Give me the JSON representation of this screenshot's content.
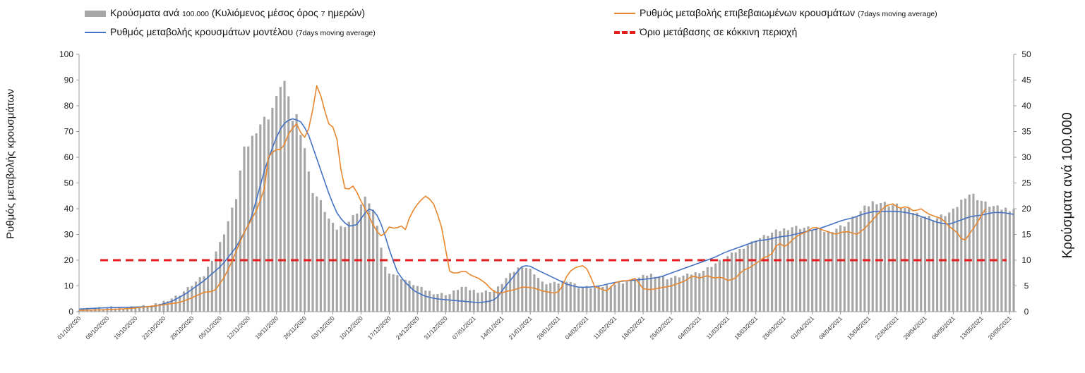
{
  "legend": {
    "bars_main": "Κρούσματα ανά",
    "bars_small": "100.000",
    "bars_tail": "(Κυλιόμενος μέσος όρος",
    "bars_small2": "7",
    "bars_tail2": "ημερών)",
    "model_main": "Ρυθμός μεταβολής κρουσμάτων μοντέλου",
    "model_small": "(7days moving average)",
    "confirmed_main": "Ρυθμός μεταβολής επιβεβαιωμένων κρουσμάτων",
    "confirmed_small": "(7days moving average)",
    "threshold": "Όριο μετάβασης σε κόκκινη περιοχή"
  },
  "colors": {
    "bars": "#a6a6a6",
    "confirmed": "#e8862e",
    "model": "#4472c4",
    "threshold": "#e41c1c"
  },
  "chart_data": {
    "type": "bar+line",
    "ylabel": "Ρυθμός μεταβολής κρουσμάτων",
    "y2label": "Κρούσματα ανά 100.000",
    "ylim": [
      0,
      100
    ],
    "y2lim": [
      0,
      50
    ],
    "yticks": [
      0,
      10,
      20,
      30,
      40,
      50,
      60,
      70,
      80,
      90,
      100
    ],
    "y2ticks": [
      0,
      5,
      10,
      15,
      20,
      25,
      30,
      35,
      40,
      45,
      50
    ],
    "start_date": "01/10/2020",
    "x_tick_labels": [
      "01/10/2020",
      "08/10/2020",
      "15/10/2020",
      "22/10/2020",
      "29/10/2020",
      "05/11/2020",
      "12/11/2020",
      "19/11/2020",
      "26/11/2020",
      "03/12/2020",
      "10/12/2020",
      "17/12/2020",
      "24/12/2020",
      "31/12/2020",
      "07/01/2021",
      "14/01/2021",
      "21/01/2021",
      "28/01/2021",
      "04/02/2021",
      "11/02/2021",
      "18/02/2021",
      "25/02/2021",
      "04/03/2021",
      "11/03/2021",
      "18/03/2021",
      "25/03/2021",
      "01/04/2021",
      "08/04/2021",
      "15/04/2021",
      "22/04/2021",
      "29/04/2021",
      "06/05/2021",
      "13/05/2021",
      "20/05/2021"
    ],
    "threshold": 20,
    "bars_per_100k_anchors": [
      [
        0,
        0.5
      ],
      [
        7,
        0.7
      ],
      [
        14,
        0.8
      ],
      [
        21,
        1.2
      ],
      [
        28,
        3.2
      ],
      [
        35,
        7
      ],
      [
        40,
        14
      ],
      [
        44,
        22
      ],
      [
        46,
        31
      ],
      [
        48,
        33
      ],
      [
        50,
        36
      ],
      [
        53,
        38
      ],
      [
        56,
        42
      ],
      [
        57,
        47
      ],
      [
        58,
        43
      ],
      [
        59,
        40
      ],
      [
        60,
        37
      ],
      [
        61,
        38
      ],
      [
        63,
        33
      ],
      [
        65,
        24
      ],
      [
        68,
        21
      ],
      [
        70,
        18
      ],
      [
        72,
        16
      ],
      [
        75,
        17
      ],
      [
        78,
        19.5
      ],
      [
        80,
        22
      ],
      [
        82,
        21
      ],
      [
        84,
        15
      ],
      [
        86,
        8
      ],
      [
        89,
        7
      ],
      [
        92,
        6
      ],
      [
        96,
        4.5
      ],
      [
        100,
        3.5
      ],
      [
        104,
        3.4
      ],
      [
        107,
        4.8
      ],
      [
        110,
        4.2
      ],
      [
        113,
        3.8
      ],
      [
        117,
        4.3
      ],
      [
        120,
        6.7
      ],
      [
        124,
        9
      ],
      [
        127,
        8
      ],
      [
        130,
        5.5
      ],
      [
        134,
        5.5
      ],
      [
        137,
        6.2
      ],
      [
        140,
        4.8
      ],
      [
        145,
        4.7
      ],
      [
        150,
        5.3
      ],
      [
        155,
        6.1
      ],
      [
        160,
        7.3
      ],
      [
        165,
        6.5
      ],
      [
        170,
        7
      ],
      [
        175,
        8
      ],
      [
        180,
        10
      ],
      [
        185,
        12
      ],
      [
        190,
        14
      ],
      [
        195,
        15.5
      ],
      [
        200,
        16.5
      ],
      [
        205,
        16.2
      ],
      [
        210,
        15.5
      ],
      [
        215,
        17
      ],
      [
        220,
        20
      ],
      [
        223,
        21.5
      ],
      [
        226,
        21
      ],
      [
        230,
        20.5
      ],
      [
        235,
        19
      ],
      [
        240,
        18
      ],
      [
        245,
        19.5
      ],
      [
        249,
        23
      ],
      [
        251,
        22.5
      ],
      [
        254,
        21
      ],
      [
        258,
        20
      ]
    ],
    "confirmed_rate_anchors": [
      [
        0,
        0.5
      ],
      [
        7,
        0.7
      ],
      [
        14,
        1.2
      ],
      [
        21,
        2.2
      ],
      [
        28,
        3.5
      ],
      [
        31,
        5
      ],
      [
        35,
        7.5
      ],
      [
        38,
        8
      ],
      [
        41,
        14
      ],
      [
        43,
        20
      ],
      [
        46,
        30
      ],
      [
        48,
        35
      ],
      [
        50,
        40
      ],
      [
        52,
        48
      ],
      [
        53,
        60
      ],
      [
        55,
        63
      ],
      [
        57,
        63
      ],
      [
        59,
        70
      ],
      [
        61,
        73
      ],
      [
        63,
        67
      ],
      [
        65,
        73
      ],
      [
        66,
        84
      ],
      [
        67,
        90
      ],
      [
        68,
        82
      ],
      [
        70,
        73
      ],
      [
        71,
        72
      ],
      [
        72,
        70
      ],
      [
        74,
        49
      ],
      [
        75,
        47
      ],
      [
        77,
        49
      ],
      [
        79,
        43
      ],
      [
        81,
        38
      ],
      [
        83,
        32
      ],
      [
        85,
        29
      ],
      [
        87,
        33
      ],
      [
        89,
        32
      ],
      [
        90,
        35
      ],
      [
        91,
        30
      ],
      [
        93,
        38
      ],
      [
        95,
        42
      ],
      [
        97,
        45
      ],
      [
        99,
        43
      ],
      [
        100,
        40
      ],
      [
        102,
        31
      ],
      [
        103,
        22
      ],
      [
        104,
        15
      ],
      [
        106,
        15
      ],
      [
        108,
        16
      ],
      [
        110,
        14
      ],
      [
        112,
        13
      ],
      [
        114,
        11
      ],
      [
        116,
        8
      ],
      [
        118,
        7
      ],
      [
        120,
        8
      ],
      [
        122,
        8.5
      ],
      [
        124,
        9.5
      ],
      [
        126,
        9.5
      ],
      [
        128,
        9
      ],
      [
        130,
        8
      ],
      [
        132,
        7.5
      ],
      [
        134,
        7
      ],
      [
        136,
        11
      ],
      [
        137,
        15
      ],
      [
        139,
        17
      ],
      [
        141,
        18
      ],
      [
        143,
        16
      ],
      [
        144,
        10
      ],
      [
        146,
        9
      ],
      [
        148,
        8
      ],
      [
        150,
        11
      ],
      [
        152,
        12
      ],
      [
        154,
        12
      ],
      [
        156,
        13
      ],
      [
        158,
        9
      ],
      [
        160,
        8.5
      ],
      [
        162,
        9
      ],
      [
        164,
        9.5
      ],
      [
        166,
        10
      ],
      [
        168,
        11
      ],
      [
        170,
        12
      ],
      [
        172,
        14
      ],
      [
        174,
        13
      ],
      [
        176,
        14
      ],
      [
        178,
        13
      ],
      [
        180,
        13.5
      ],
      [
        182,
        12
      ],
      [
        184,
        13
      ],
      [
        186,
        16
      ],
      [
        188,
        17
      ],
      [
        190,
        19
      ],
      [
        192,
        21
      ],
      [
        194,
        22
      ],
      [
        196,
        27
      ],
      [
        198,
        25
      ],
      [
        200,
        28
      ],
      [
        202,
        30
      ],
      [
        204,
        31
      ],
      [
        206,
        33
      ],
      [
        208,
        32
      ],
      [
        210,
        31
      ],
      [
        212,
        30
      ],
      [
        214,
        31
      ],
      [
        216,
        31
      ],
      [
        218,
        30
      ],
      [
        220,
        32
      ],
      [
        222,
        35
      ],
      [
        224,
        38
      ],
      [
        226,
        41
      ],
      [
        228,
        42
      ],
      [
        230,
        40
      ],
      [
        232,
        41
      ],
      [
        234,
        39
      ],
      [
        236,
        40
      ],
      [
        238,
        38
      ],
      [
        240,
        37
      ],
      [
        242,
        36
      ],
      [
        244,
        33
      ],
      [
        246,
        31
      ],
      [
        248,
        27
      ],
      [
        250,
        31
      ],
      [
        252,
        35
      ],
      [
        254,
        40
      ]
    ],
    "model_rate_anchors": [
      [
        0,
        1
      ],
      [
        7,
        1.5
      ],
      [
        14,
        1.7
      ],
      [
        21,
        2
      ],
      [
        26,
        4
      ],
      [
        30,
        7
      ],
      [
        35,
        12
      ],
      [
        40,
        18
      ],
      [
        44,
        25
      ],
      [
        48,
        35
      ],
      [
        50,
        45
      ],
      [
        52,
        55
      ],
      [
        54,
        63
      ],
      [
        56,
        70
      ],
      [
        58,
        74
      ],
      [
        60,
        75
      ],
      [
        62,
        74
      ],
      [
        64,
        70
      ],
      [
        66,
        62
      ],
      [
        68,
        54
      ],
      [
        70,
        46
      ],
      [
        72,
        39
      ],
      [
        74,
        35
      ],
      [
        76,
        33
      ],
      [
        78,
        34
      ],
      [
        80,
        38
      ],
      [
        81,
        40
      ],
      [
        83,
        39
      ],
      [
        85,
        33
      ],
      [
        87,
        24
      ],
      [
        89,
        16
      ],
      [
        91,
        12
      ],
      [
        94,
        8
      ],
      [
        97,
        6
      ],
      [
        100,
        5
      ],
      [
        104,
        4.5
      ],
      [
        108,
        4
      ],
      [
        112,
        3.5
      ],
      [
        115,
        4
      ],
      [
        117,
        5
      ],
      [
        119,
        9
      ],
      [
        122,
        14
      ],
      [
        124,
        17.5
      ],
      [
        126,
        18
      ],
      [
        128,
        16.5
      ],
      [
        131,
        14.5
      ],
      [
        134,
        12.5
      ],
      [
        137,
        10.5
      ],
      [
        140,
        9.5
      ],
      [
        143,
        9.5
      ],
      [
        146,
        10
      ],
      [
        149,
        11
      ],
      [
        152,
        11.8
      ],
      [
        156,
        12.3
      ],
      [
        160,
        12.8
      ],
      [
        163,
        13.5
      ],
      [
        166,
        15
      ],
      [
        169,
        16.5
      ],
      [
        172,
        18
      ],
      [
        175,
        19.5
      ],
      [
        178,
        21
      ],
      [
        181,
        23
      ],
      [
        184,
        24.5
      ],
      [
        187,
        26
      ],
      [
        190,
        27.5
      ],
      [
        193,
        28
      ],
      [
        196,
        29
      ],
      [
        199,
        29.5
      ],
      [
        202,
        30.5
      ],
      [
        205,
        31.5
      ],
      [
        208,
        32.5
      ],
      [
        211,
        34
      ],
      [
        214,
        35.5
      ],
      [
        217,
        36.5
      ],
      [
        220,
        38
      ],
      [
        223,
        39
      ],
      [
        226,
        39
      ],
      [
        229,
        39
      ],
      [
        232,
        38.5
      ],
      [
        235,
        37.5
      ],
      [
        238,
        36
      ],
      [
        241,
        34.5
      ],
      [
        244,
        34
      ],
      [
        247,
        35.5
      ],
      [
        250,
        37
      ],
      [
        253,
        37.5
      ],
      [
        256,
        38.5
      ],
      [
        259,
        38.5
      ],
      [
        262,
        37.8
      ]
    ]
  }
}
